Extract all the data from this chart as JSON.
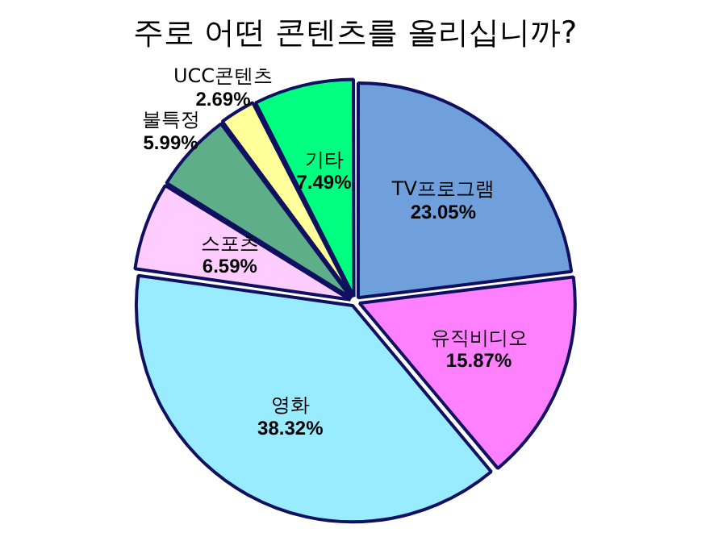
{
  "chart_data": {
    "type": "pie",
    "title": "주로 어떤 콘텐츠를 올리십니까?",
    "categories": [
      "TV프로그램",
      "유직비디오",
      "영화",
      "스포츠",
      "불특정",
      "UCC콘텐츠",
      "기타"
    ],
    "values": [
      23.05,
      15.87,
      38.32,
      6.59,
      5.99,
      2.69,
      7.49
    ],
    "colors": [
      "#6fa0dc",
      "#ff80ff",
      "#99ebff",
      "#ffccff",
      "#5fae8a",
      "#ffff99",
      "#00ff80"
    ],
    "value_labels": [
      "23.05%",
      "15.87%",
      "38.32%",
      "6.59%",
      "5.99%",
      "2.69%",
      "7.49%"
    ]
  }
}
